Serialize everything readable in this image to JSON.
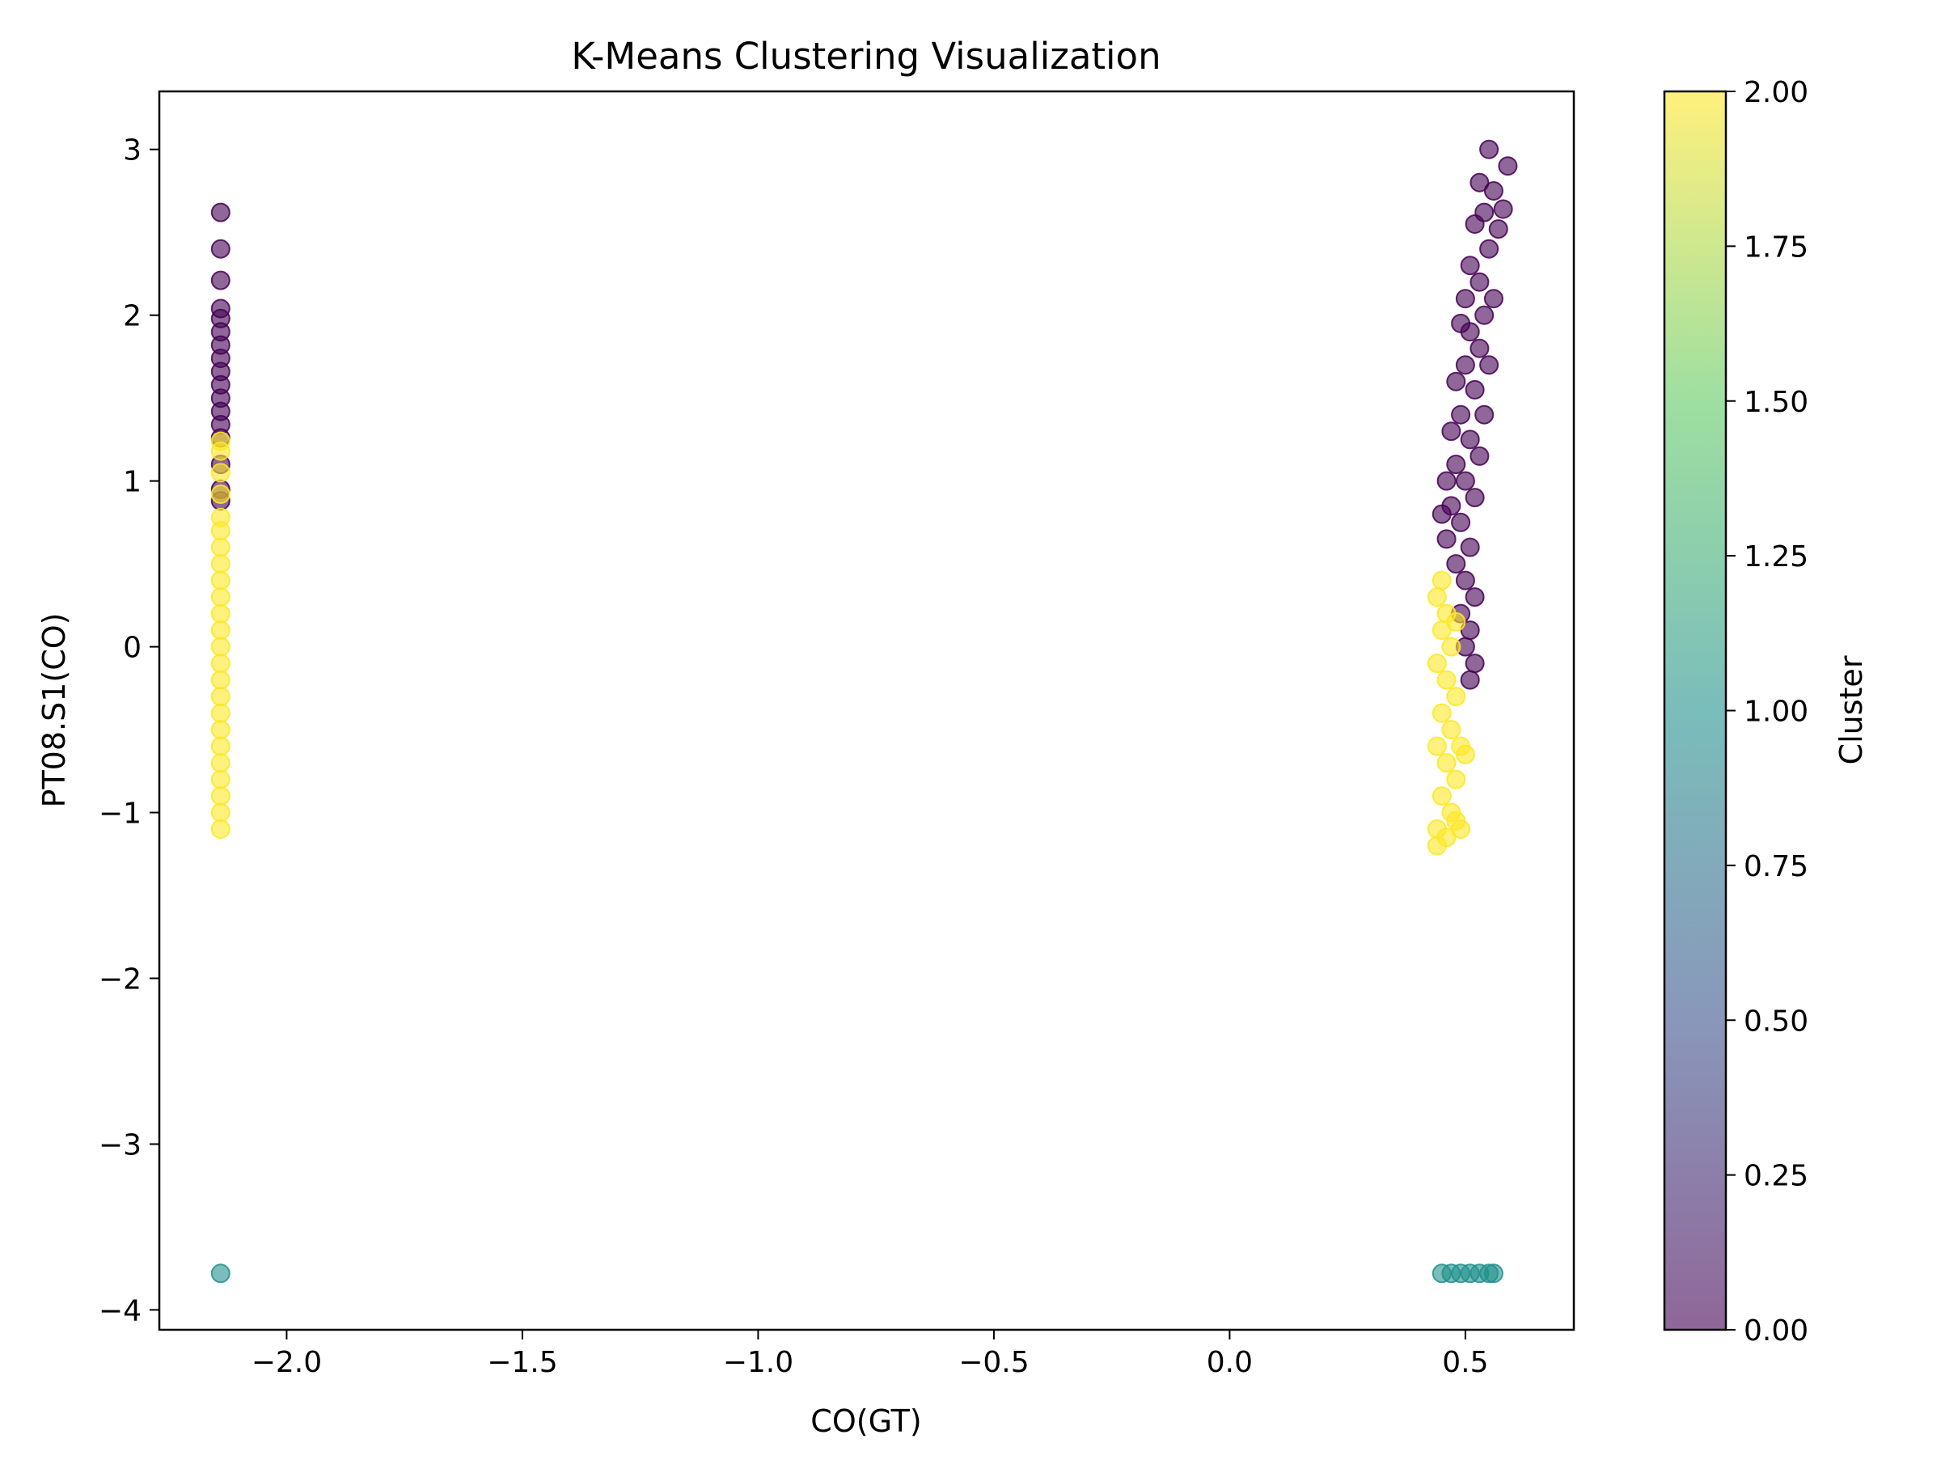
{
  "chart_data": {
    "type": "scatter",
    "title": "K-Means Clustering Visualization",
    "xlabel": "CO(GT)",
    "ylabel": "PT08.S1(CO)",
    "xlim": [
      -2.27,
      0.73
    ],
    "ylim": [
      -4.12,
      3.35
    ],
    "xticks": [
      {
        "value": -2.0,
        "label": "−2.0"
      },
      {
        "value": -1.5,
        "label": "−1.5"
      },
      {
        "value": -1.0,
        "label": "−1.0"
      },
      {
        "value": -0.5,
        "label": "−0.5"
      },
      {
        "value": 0.0,
        "label": "0.0"
      },
      {
        "value": 0.5,
        "label": "0.5"
      }
    ],
    "yticks": [
      {
        "value": -4,
        "label": "−4"
      },
      {
        "value": -3,
        "label": "−3"
      },
      {
        "value": -2,
        "label": "−2"
      },
      {
        "value": -1,
        "label": "−1"
      },
      {
        "value": 0,
        "label": "0"
      },
      {
        "value": 1,
        "label": "1"
      },
      {
        "value": 2,
        "label": "2"
      },
      {
        "value": 3,
        "label": "3"
      }
    ],
    "grid": false,
    "point_alpha": 0.6,
    "colormap": "viridis",
    "colormap_stops": [
      "#440154",
      "#3b528b",
      "#21918c",
      "#5ec962",
      "#fde725"
    ],
    "colorbar": {
      "label": "Cluster",
      "range": [
        0,
        2
      ],
      "ticks": [
        {
          "value": 0.0,
          "label": "0.00"
        },
        {
          "value": 0.25,
          "label": "0.25"
        },
        {
          "value": 0.5,
          "label": "0.50"
        },
        {
          "value": 0.75,
          "label": "0.75"
        },
        {
          "value": 1.0,
          "label": "1.00"
        },
        {
          "value": 1.25,
          "label": "1.25"
        },
        {
          "value": 1.5,
          "label": "1.50"
        },
        {
          "value": 1.75,
          "label": "1.75"
        },
        {
          "value": 2.0,
          "label": "2.00"
        }
      ]
    },
    "series": [
      {
        "cluster": 0,
        "color": "#440154",
        "points": [
          [
            -2.14,
            2.62
          ],
          [
            -2.14,
            2.4
          ],
          [
            -2.14,
            2.21
          ],
          [
            -2.14,
            2.04
          ],
          [
            -2.14,
            1.98
          ],
          [
            -2.14,
            1.9
          ],
          [
            -2.14,
            1.82
          ],
          [
            -2.14,
            1.74
          ],
          [
            -2.14,
            1.66
          ],
          [
            -2.14,
            1.58
          ],
          [
            -2.14,
            1.5
          ],
          [
            -2.14,
            1.42
          ],
          [
            -2.14,
            1.34
          ],
          [
            -2.14,
            1.26
          ],
          [
            -2.14,
            1.1
          ],
          [
            -2.14,
            0.95
          ],
          [
            -2.14,
            0.88
          ],
          [
            0.55,
            3.0
          ],
          [
            0.59,
            2.9
          ],
          [
            0.56,
            2.75
          ],
          [
            0.58,
            2.64
          ],
          [
            0.53,
            2.8
          ],
          [
            0.54,
            2.62
          ],
          [
            0.57,
            2.52
          ],
          [
            0.55,
            2.4
          ],
          [
            0.52,
            2.55
          ],
          [
            0.51,
            2.3
          ],
          [
            0.53,
            2.2
          ],
          [
            0.56,
            2.1
          ],
          [
            0.5,
            2.1
          ],
          [
            0.54,
            2.0
          ],
          [
            0.51,
            1.9
          ],
          [
            0.49,
            1.95
          ],
          [
            0.53,
            1.8
          ],
          [
            0.55,
            1.7
          ],
          [
            0.5,
            1.7
          ],
          [
            0.48,
            1.6
          ],
          [
            0.52,
            1.55
          ],
          [
            0.54,
            1.4
          ],
          [
            0.49,
            1.4
          ],
          [
            0.47,
            1.3
          ],
          [
            0.51,
            1.25
          ],
          [
            0.53,
            1.15
          ],
          [
            0.48,
            1.1
          ],
          [
            0.46,
            1.0
          ],
          [
            0.5,
            1.0
          ],
          [
            0.52,
            0.9
          ],
          [
            0.47,
            0.85
          ],
          [
            0.45,
            0.8
          ],
          [
            0.49,
            0.75
          ],
          [
            0.51,
            0.6
          ],
          [
            0.46,
            0.65
          ],
          [
            0.48,
            0.5
          ],
          [
            0.5,
            0.4
          ],
          [
            0.52,
            0.3
          ],
          [
            0.49,
            0.2
          ],
          [
            0.51,
            0.1
          ],
          [
            0.5,
            0.0
          ],
          [
            0.52,
            -0.1
          ],
          [
            0.51,
            -0.2
          ]
        ]
      },
      {
        "cluster": 1,
        "color": "#21918c",
        "points": [
          [
            -2.14,
            -3.78
          ],
          [
            0.45,
            -3.78
          ],
          [
            0.47,
            -3.78
          ],
          [
            0.49,
            -3.78
          ],
          [
            0.51,
            -3.78
          ],
          [
            0.53,
            -3.78
          ],
          [
            0.55,
            -3.78
          ],
          [
            0.56,
            -3.78
          ]
        ]
      },
      {
        "cluster": 2,
        "color": "#fde725",
        "points": [
          [
            -2.14,
            1.24
          ],
          [
            -2.14,
            1.18
          ],
          [
            -2.14,
            1.05
          ],
          [
            -2.14,
            0.92
          ],
          [
            -2.14,
            0.78
          ],
          [
            -2.14,
            0.7
          ],
          [
            -2.14,
            0.6
          ],
          [
            -2.14,
            0.5
          ],
          [
            -2.14,
            0.4
          ],
          [
            -2.14,
            0.3
          ],
          [
            -2.14,
            0.2
          ],
          [
            -2.14,
            0.1
          ],
          [
            -2.14,
            0.0
          ],
          [
            -2.14,
            -0.1
          ],
          [
            -2.14,
            -0.2
          ],
          [
            -2.14,
            -0.3
          ],
          [
            -2.14,
            -0.4
          ],
          [
            -2.14,
            -0.5
          ],
          [
            -2.14,
            -0.6
          ],
          [
            -2.14,
            -0.7
          ],
          [
            -2.14,
            -0.8
          ],
          [
            -2.14,
            -0.9
          ],
          [
            -2.14,
            -1.0
          ],
          [
            -2.14,
            -1.1
          ],
          [
            0.45,
            0.4
          ],
          [
            0.44,
            0.3
          ],
          [
            0.46,
            0.2
          ],
          [
            0.48,
            0.15
          ],
          [
            0.45,
            0.1
          ],
          [
            0.47,
            0.0
          ],
          [
            0.44,
            -0.1
          ],
          [
            0.46,
            -0.2
          ],
          [
            0.48,
            -0.3
          ],
          [
            0.45,
            -0.4
          ],
          [
            0.47,
            -0.5
          ],
          [
            0.49,
            -0.6
          ],
          [
            0.5,
            -0.65
          ],
          [
            0.44,
            -0.6
          ],
          [
            0.46,
            -0.7
          ],
          [
            0.48,
            -0.8
          ],
          [
            0.45,
            -0.9
          ],
          [
            0.47,
            -1.0
          ],
          [
            0.44,
            -1.1
          ],
          [
            0.46,
            -1.15
          ],
          [
            0.44,
            -1.2
          ],
          [
            0.48,
            -1.05
          ],
          [
            0.49,
            -1.1
          ]
        ]
      }
    ]
  }
}
